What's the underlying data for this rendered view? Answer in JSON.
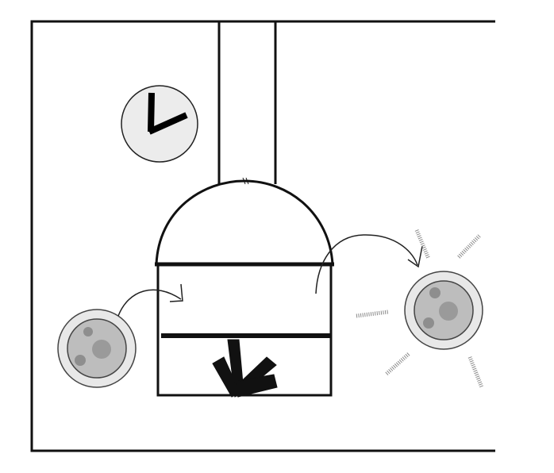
{
  "diagram": {
    "colors": {
      "line": "#111111",
      "cell_outer": "#e8e8e8",
      "cell_inner": "#bdbdbd",
      "nucleus": "#9a9a9a",
      "granule": "#8e8e8e",
      "clock_face": "#ececec",
      "fiber": "#8a8a8a"
    },
    "icons": {
      "clock": "clock-icon",
      "down_arrow": "down-arrow-icon"
    }
  }
}
